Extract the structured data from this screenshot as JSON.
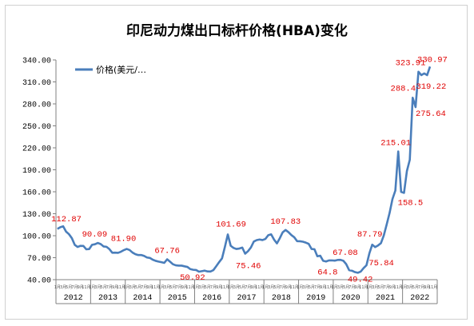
{
  "chart_data": {
    "type": "line",
    "title": "印尼动力煤出口标杆价格(HBA)变化",
    "legend": "价格(美元/…",
    "legend_position": "top-left",
    "grid": false,
    "ylim": [
      40,
      340
    ],
    "yticks": [
      "40.00",
      "70.00",
      "100.00",
      "130.00",
      "160.00",
      "190.00",
      "220.00",
      "250.00",
      "280.00",
      "310.00",
      "340.00"
    ],
    "years": [
      "2012",
      "2013",
      "2014",
      "2015",
      "2016",
      "2017",
      "2018",
      "2019",
      "2020",
      "2021",
      "2022"
    ],
    "month_tick_labels": [
      "1月",
      "3月",
      "5月",
      "7月",
      "9月",
      "11月"
    ],
    "line_color": "#4a7ebb",
    "label_color": "#e00000",
    "series": [
      {
        "values": [
          109.29,
          111.58,
          112.87,
          105.61,
          102.12,
          96.65,
          87.56,
          84.65,
          86.21,
          86.04,
          81.44,
          81.75,
          87.55,
          88.35,
          90.09,
          88.56,
          85.33,
          84.87,
          81.69,
          76.7,
          76.89,
          76.61,
          78.13,
          80.31,
          81.9,
          80.44,
          77.01,
          74.81,
          73.6,
          73.64,
          72.45,
          70.29,
          69.69,
          67.26,
          65.7,
          64.65,
          63.84,
          62.92,
          67.76,
          64.48,
          61.08,
          59.59,
          59.16,
          59.14,
          58.21,
          57.39,
          54.43,
          53.51,
          53.2,
          50.92,
          51.62,
          52.32,
          51.2,
          51.16,
          53,
          58.37,
          63.93,
          69.07,
          84.89,
          101.69,
          86.23,
          83.32,
          81.9,
          82.51,
          83.81,
          75.46,
          78.95,
          83.97,
          92.03,
          93.99,
          94.8,
          94.04,
          95.54,
          100.69,
          101.86,
          94.75,
          89.53,
          96.61,
          104.65,
          107.83,
          104.81,
          100.89,
          97.9,
          92.51,
          92.41,
          91.8,
          90.57,
          88.85,
          81.86,
          81.48,
          71.92,
          72.67,
          65.79,
          64.8,
          66.27,
          66.3,
          65.93,
          66.89,
          67.08,
          65.77,
          61.11,
          52.98,
          52.16,
          50.34,
          49.42,
          51,
          55.71,
          59.65,
          75.84,
          87.79,
          84.47,
          86.68,
          89.74,
          100.33,
          115.35,
          130.99,
          150.03,
          161.63,
          215.01,
          159.79,
          158.5,
          188.38,
          203.69,
          288.4,
          275.64,
          323.91,
          319.22,
          321.59,
          319.22,
          330.97
        ]
      }
    ],
    "data_labels": [
      {
        "i": 2,
        "text": "112.87"
      },
      {
        "i": 14,
        "text": "90.09"
      },
      {
        "i": 24,
        "text": "81.90"
      },
      {
        "i": 38,
        "text": "67.76"
      },
      {
        "i": 49,
        "text": "50.92"
      },
      {
        "i": 59,
        "text": "101.69"
      },
      {
        "i": 65,
        "text": "75.46"
      },
      {
        "i": 79,
        "text": "107.83"
      },
      {
        "i": 93,
        "text": "64.8"
      },
      {
        "i": 98,
        "text": "67.08"
      },
      {
        "i": 104,
        "text": "49.42"
      },
      {
        "i": 109,
        "text": "87.79"
      },
      {
        "i": 108,
        "text": "75.84"
      },
      {
        "i": 118,
        "text": "215.01"
      },
      {
        "i": 120,
        "text": "158.5"
      },
      {
        "i": 123,
        "text": "288.4"
      },
      {
        "i": 124,
        "text": "275.64"
      },
      {
        "i": 125,
        "text": "323.91"
      },
      {
        "i": 128,
        "text": "319.22"
      },
      {
        "i": 129,
        "text": "330.97"
      }
    ]
  }
}
